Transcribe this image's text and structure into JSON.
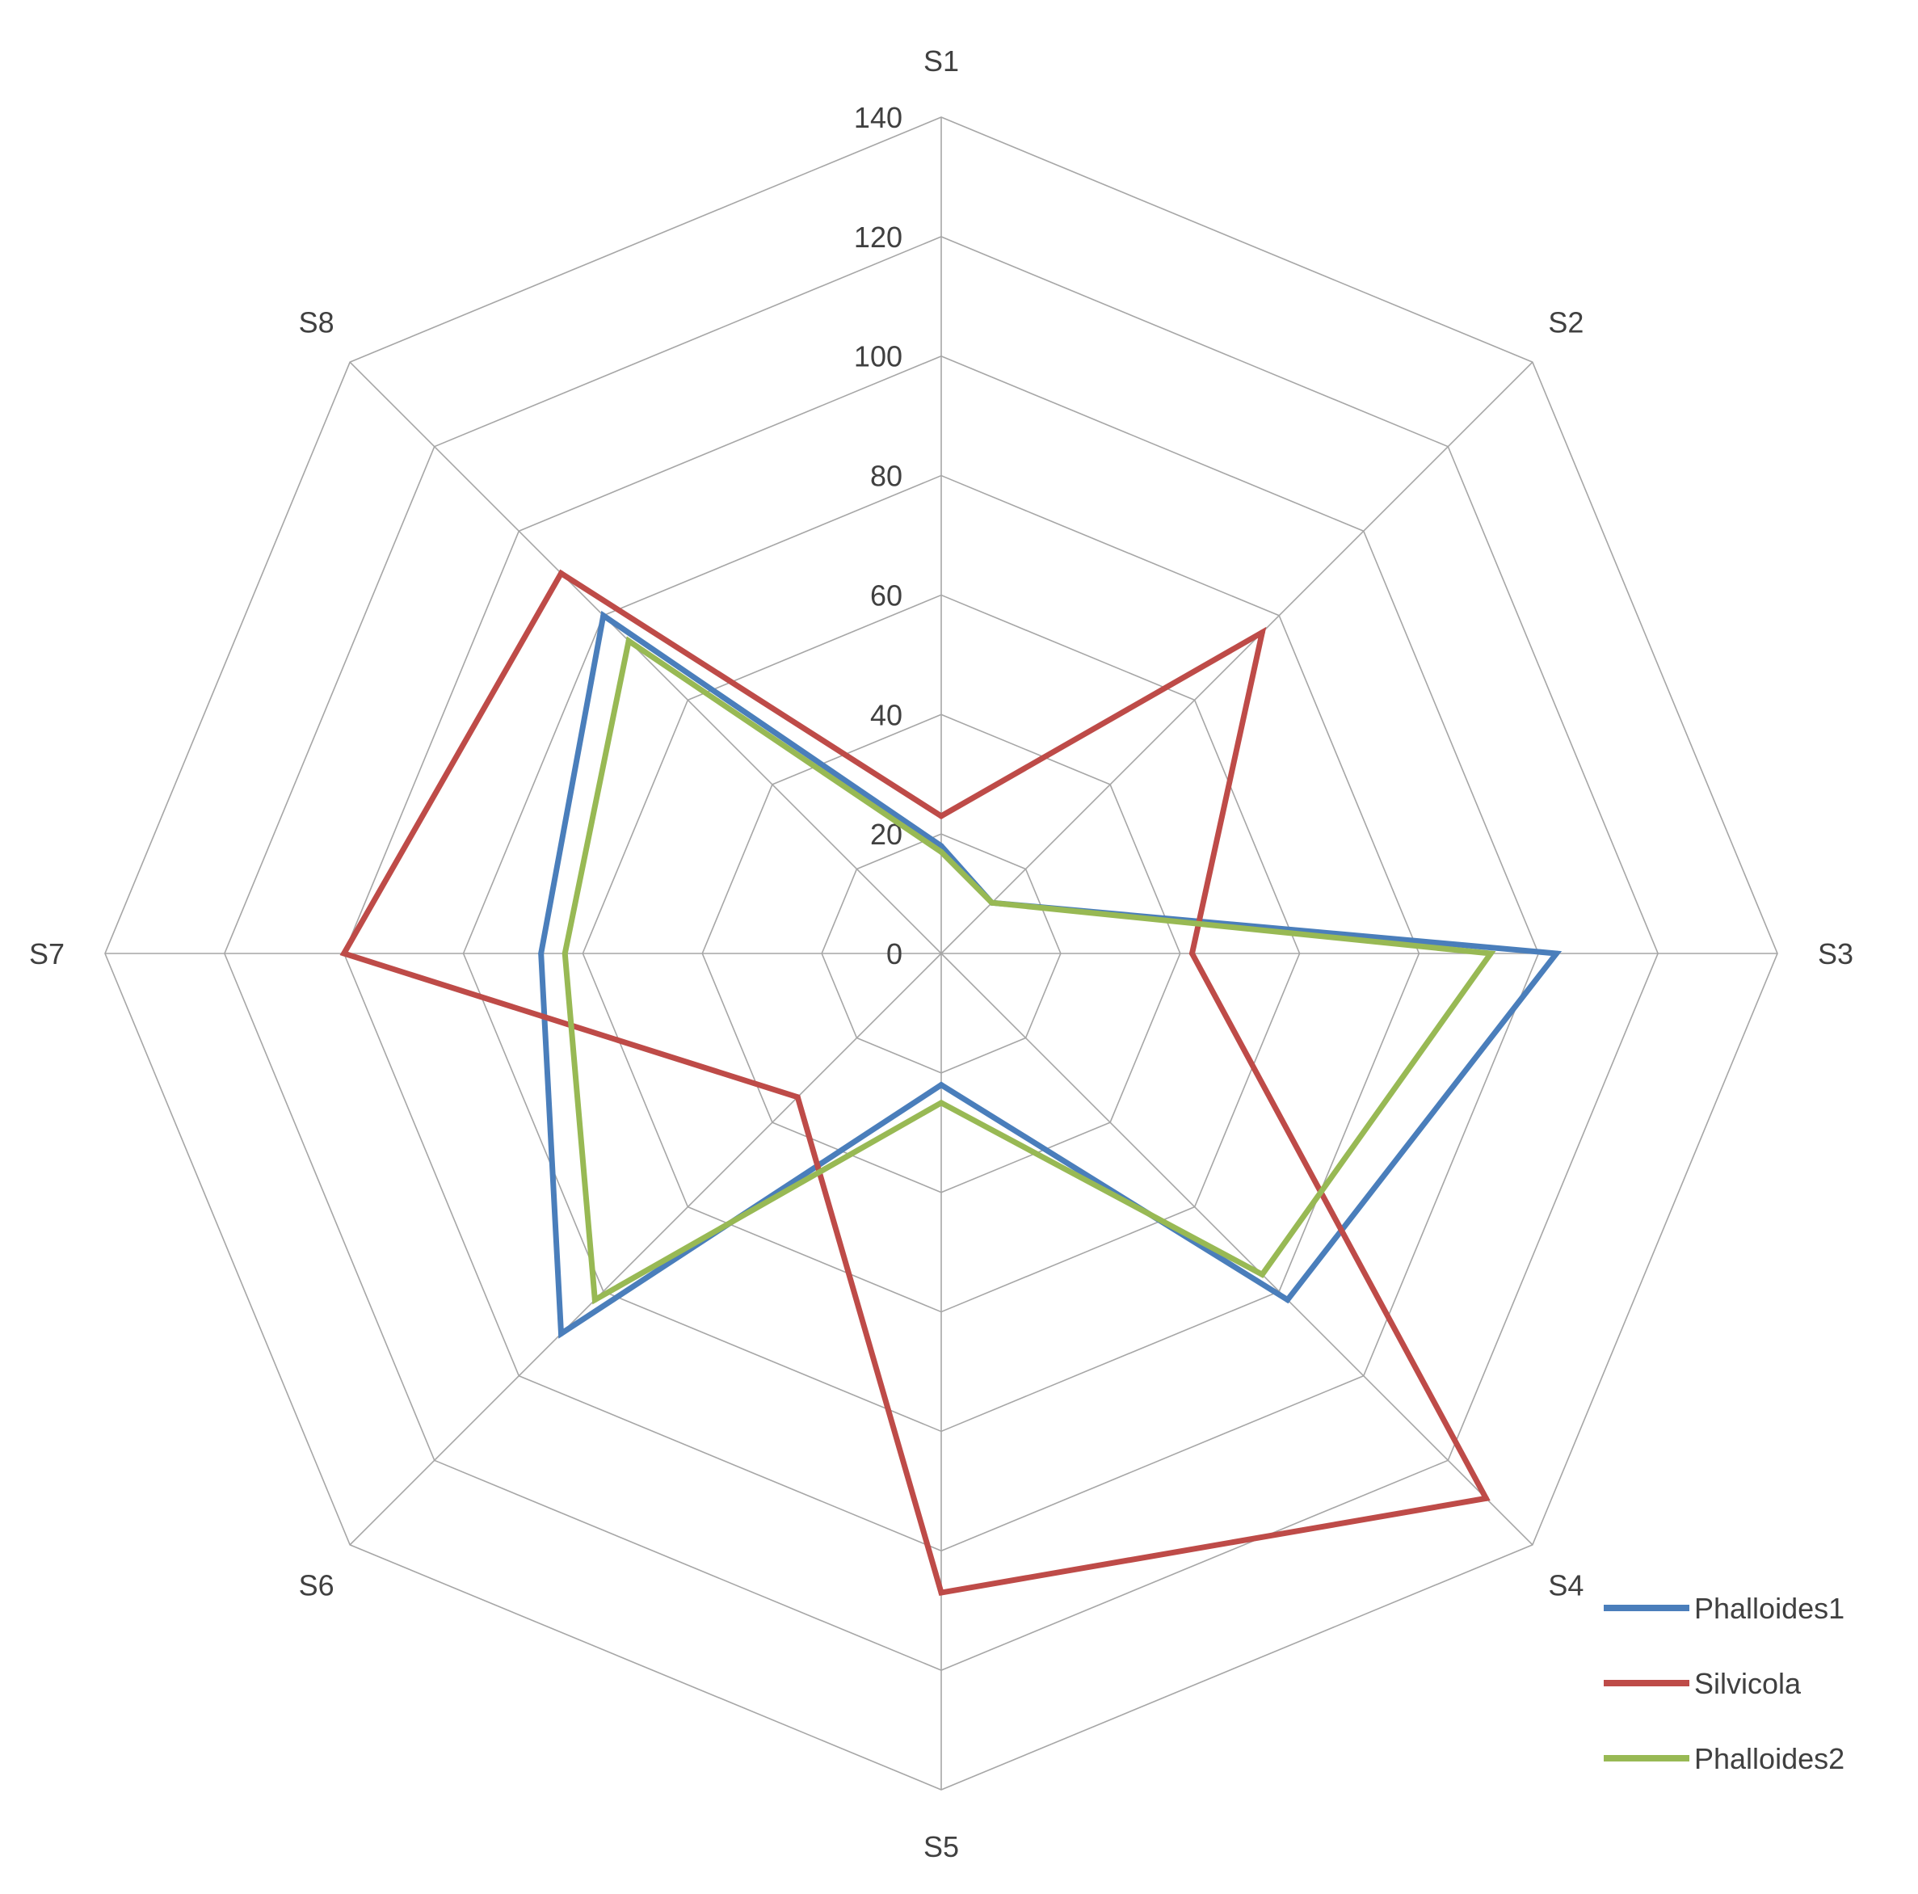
{
  "chart_data": {
    "type": "radar",
    "title": "",
    "categories": [
      "S1",
      "S2",
      "S3",
      "S4",
      "S5",
      "S6",
      "S7",
      "S8"
    ],
    "rlim": [
      0,
      140
    ],
    "ticks": [
      "0",
      "20",
      "40",
      "60",
      "80",
      "100",
      "120",
      "140"
    ],
    "tick_values": [
      0,
      20,
      40,
      60,
      80,
      100,
      120,
      140
    ],
    "grid": true,
    "legend_position": "bottom-right",
    "series": [
      {
        "name": "Phalloides1",
        "color": "#4a7ebb",
        "values": [
          18,
          12,
          103,
          82,
          22,
          90,
          67,
          80
        ]
      },
      {
        "name": "Silvicola",
        "color": "#be4b48",
        "values": [
          23,
          76,
          42,
          129,
          107,
          34,
          100,
          90
        ]
      },
      {
        "name": "Phalloides2",
        "color": "#98b954",
        "values": [
          17,
          12,
          92,
          76,
          25,
          82,
          63,
          74
        ]
      }
    ]
  }
}
